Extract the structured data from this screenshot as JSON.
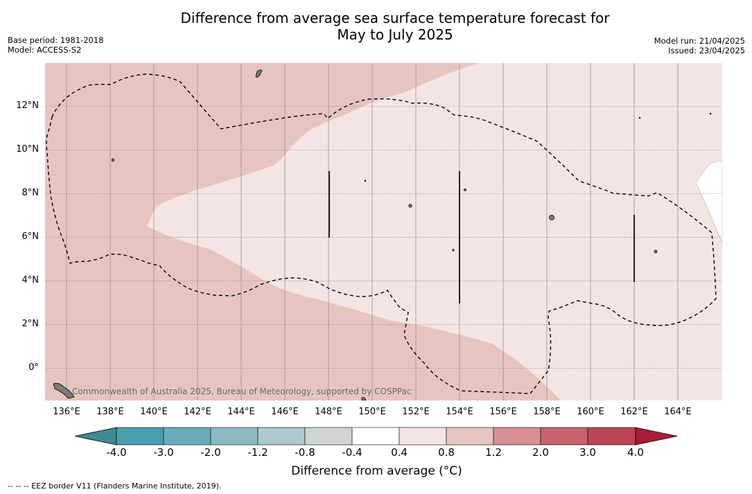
{
  "title": {
    "line1": "Difference from average sea surface temperature forecast for",
    "line2": "May to July 2025"
  },
  "meta": {
    "base_period": "Base period: 1981-2018",
    "model": "Model: ACCESS-S2",
    "model_run": "Model run: 21/04/2025",
    "issued": "Issued: 23/04/2025"
  },
  "map": {
    "lat_labels": [
      "12°N",
      "10°N",
      "8°N",
      "6°N",
      "4°N",
      "2°N",
      "0°"
    ],
    "lon_labels": [
      "136°E",
      "138°E",
      "140°E",
      "142°E",
      "144°E",
      "146°E",
      "148°E",
      "150°E",
      "152°E",
      "154°E",
      "156°E",
      "158°E",
      "160°E",
      "162°E",
      "164°E"
    ],
    "credit": "Commonwealth of Australia 2025, Bureau of Meteorology, supported by COSPPac",
    "colors": {
      "band_0_4_to_0_8": "#f3e5e3",
      "band_0_8_to_1_2": "#e6c5c0",
      "below_0_4": "#ffffff",
      "eez_border": "#000000",
      "land": "#888888"
    }
  },
  "colorbar": {
    "ticks": [
      "-4.0",
      "-3.0",
      "-2.0",
      "-1.2",
      "-0.8",
      "-0.4",
      "0.4",
      "0.8",
      "1.2",
      "2.0",
      "3.0",
      "4.0"
    ],
    "colors": [
      "#3f8b94",
      "#4a9fae",
      "#6aabbb",
      "#8cb9c4",
      "#aec9cd",
      "#d0d5d4",
      "#ffffff",
      "#f3e5e3",
      "#e6c5c0",
      "#d69096",
      "#c8636f",
      "#bb4553",
      "#a81c3a"
    ],
    "label": "Difference from average (°C)"
  },
  "footnote": "--  --  -- EEZ border V11 (Flanders Marine Institute, 2019)."
}
